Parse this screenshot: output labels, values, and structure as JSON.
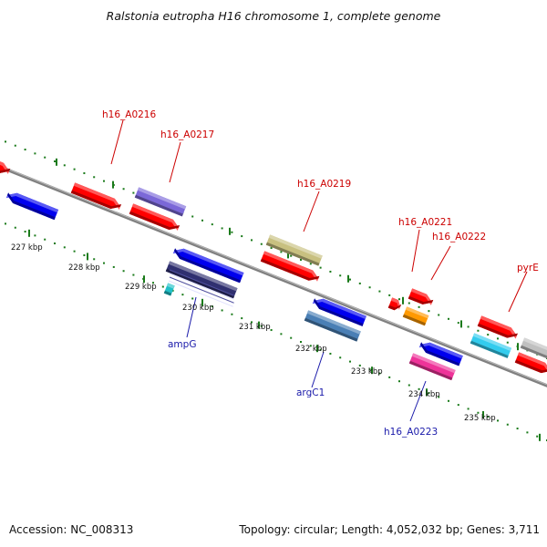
{
  "title": "Ralstonia eutropha H16 chromosome 1, complete genome",
  "footer": {
    "accession": "Accession: NC_008313",
    "topology": "Topology: circular; Length: 4,052,032 bp; Genes: 3,711"
  },
  "colors": {
    "backbone": "#808080",
    "ticks": "#1a7a1a",
    "label_top": "#cc0000",
    "label_bottom": "#1a1aaa",
    "leader_top": "#cc0000",
    "leader_bottom": "#1a1aaa"
  },
  "scale_labels": [
    "227 kbp",
    "228 kbp",
    "229 kbp",
    "230 kbp",
    "231 kbp",
    "232 kbp",
    "233 kbp",
    "234 kbp",
    "235 kbp"
  ],
  "top_gene_labels": [
    "h16_A0216",
    "h16_A0217",
    "h16_A0219",
    "h16_A0221",
    "h16_A0222",
    "pyrE"
  ],
  "bottom_gene_labels": [
    "ampG",
    "argC1",
    "h16_A0223"
  ],
  "genes": [
    {
      "color": "#ff0000",
      "dir": "fwd"
    },
    {
      "color": "#ff0000",
      "dir": "fwd"
    },
    {
      "color": "#7b68d8",
      "dir": "none"
    },
    {
      "color": "#ff0000",
      "dir": "fwd"
    },
    {
      "color": "#c8c080",
      "dir": "none"
    },
    {
      "color": "#ff0000",
      "dir": "fwd"
    },
    {
      "color": "#ff0000",
      "dir": "fwd"
    },
    {
      "color": "#ff9900",
      "dir": "none"
    },
    {
      "color": "#ff0000",
      "dir": "fwd"
    },
    {
      "color": "#33ccee",
      "dir": "none"
    },
    {
      "color": "#ff0000",
      "dir": "fwd"
    },
    {
      "color": "#c0c0c0",
      "dir": "none"
    },
    {
      "color": "#ff0000",
      "dir": "fwd"
    },
    {
      "color": "#0000ee",
      "dir": "rev"
    },
    {
      "color": "#0000ee",
      "dir": "rev"
    },
    {
      "color": "#303070",
      "dir": "none"
    },
    {
      "color": "#20c0c8",
      "dir": "none"
    },
    {
      "color": "#0000ee",
      "dir": "rev"
    },
    {
      "color": "#4a7fb5",
      "dir": "none"
    },
    {
      "color": "#0000ee",
      "dir": "rev"
    },
    {
      "color": "#ee3399",
      "dir": "none"
    }
  ]
}
